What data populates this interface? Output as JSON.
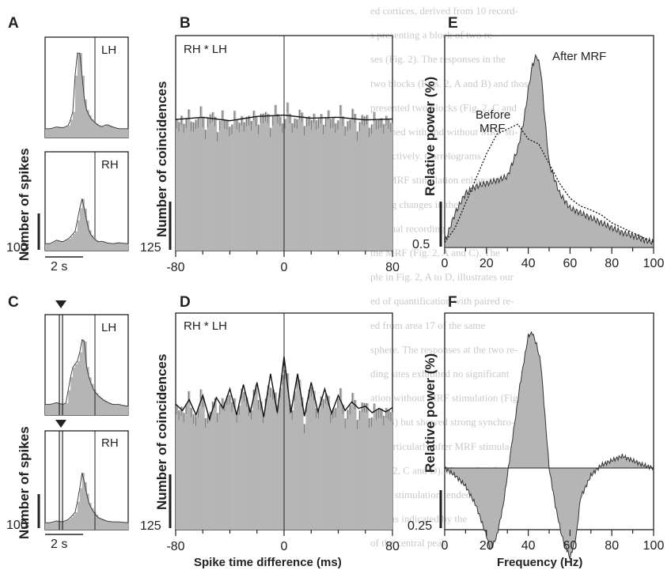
{
  "colors": {
    "fill": "#b5b5b5",
    "line": "#333333",
    "frame": "#222222",
    "background": "#ffffff"
  },
  "background_text": [
    "ed cortices, derived from 10 record-",
    "s presenting a block of two re-",
    "ses (Fig. 2). The responses in the",
    "two blocks (Figs. 2, A and B) and those",
    "presented two blocks (Fig. 2, C and",
    "obtained with and without MRF sti-",
    "respectively. Correlograms",
    "and MRF stimulation enhanced",
    "oming changes in the areas",
    "the dual recording site 17.",
    "the MRF (Fig. 2, A and C). The",
    "ple in Fig. 2, A to D, illustrates our",
    "ed of quantification with paired re-",
    "ed from area 17 of the same",
    "sphere. The responses at the two re-",
    "ding sites exhibited no significant",
    "ation without MRF stimulation (Fig.",
    "and B) but showed strong synchro-",
    "on particularly after MRF stimula-",
    "(Fig. 2, C and D). Hence, brief",
    "MRF stimulation tended to",
    "ony, as indicated by the",
    "of the central peak"
  ],
  "panels": {
    "A": {
      "letter": "A",
      "ylabel": "Number of spikes",
      "scale_value": "100",
      "time_bar": "2 s",
      "traces": [
        {
          "label": "LH"
        },
        {
          "label": "RH"
        }
      ]
    },
    "C": {
      "letter": "C",
      "ylabel": "Number of spikes",
      "scale_value": "100",
      "time_bar": "2 s",
      "has_stim_marker": true,
      "traces": [
        {
          "label": "LH"
        },
        {
          "label": "RH"
        }
      ]
    },
    "B": {
      "letter": "B",
      "ylabel": "Number of coincidences",
      "inner_label": "RH * LH",
      "scale_value": "125"
    },
    "D": {
      "letter": "D",
      "ylabel": "Number of coincidences",
      "inner_label": "RH * LH",
      "scale_value": "125",
      "xlabel": "Spike time difference (ms)"
    },
    "E": {
      "letter": "E",
      "ylabel": "Relative power (%)",
      "scale_value": "0.5",
      "annotations": {
        "after": "After MRF",
        "before_1": "Before",
        "before_2": "MRF"
      }
    },
    "F": {
      "letter": "F",
      "ylabel": "Relative power (%)",
      "scale_value": "0.25",
      "xlabel": "Frequency (Hz)"
    }
  },
  "chart_data": [
    {
      "id": "A",
      "type": "area",
      "title": "",
      "xlabel": "",
      "ylabel": "Number of spikes",
      "series": [
        {
          "name": "LH",
          "x": [
            0,
            0.3,
            0.6,
            0.9,
            1.2,
            1.4,
            1.5,
            1.6,
            1.7,
            1.8,
            1.9,
            2.0,
            2.1,
            2.2,
            2.3,
            2.4,
            2.6,
            2.8,
            3.0,
            3.3,
            3.6,
            4.0
          ],
          "values": [
            10,
            10,
            12,
            11,
            14,
            30,
            70,
            95,
            100,
            80,
            50,
            35,
            28,
            24,
            20,
            18,
            14,
            12,
            15,
            12,
            10,
            10
          ]
        },
        {
          "name": "RH",
          "x": [
            0,
            0.3,
            0.6,
            0.9,
            1.2,
            1.5,
            1.7,
            1.8,
            1.9,
            2.0,
            2.1,
            2.2,
            2.4,
            2.6,
            2.8,
            3.0,
            3.3,
            3.6,
            4.0
          ],
          "values": [
            8,
            8,
            12,
            10,
            14,
            22,
            45,
            62,
            55,
            40,
            30,
            20,
            14,
            10,
            11,
            9,
            8,
            9,
            8
          ]
        }
      ]
    },
    {
      "id": "C",
      "type": "area",
      "title": "",
      "xlabel": "",
      "ylabel": "Number of spikes",
      "series": [
        {
          "name": "LH",
          "x": [
            0,
            0.3,
            0.6,
            0.9,
            1.1,
            1.2,
            1.4,
            1.6,
            1.8,
            1.9,
            2.0,
            2.1,
            2.2,
            2.3,
            2.4,
            2.6,
            2.8,
            3.0,
            3.3,
            3.6,
            4.0
          ],
          "values": [
            12,
            12,
            14,
            12,
            14,
            35,
            55,
            60,
            78,
            100,
            62,
            48,
            40,
            34,
            28,
            22,
            18,
            15,
            12,
            12,
            10
          ]
        },
        {
          "name": "RH",
          "x": [
            0,
            0.3,
            0.6,
            0.9,
            1.2,
            1.5,
            1.7,
            1.8,
            1.9,
            2.0,
            2.1,
            2.2,
            2.4,
            2.6,
            2.8,
            3.0,
            3.3,
            3.6,
            4.0
          ],
          "values": [
            8,
            8,
            10,
            9,
            12,
            20,
            42,
            68,
            60,
            48,
            36,
            28,
            20,
            14,
            12,
            10,
            9,
            9,
            8
          ]
        }
      ]
    },
    {
      "id": "B",
      "type": "bar",
      "title": "",
      "xlabel": "",
      "ylabel": "Number of coincidences",
      "xlim": [
        -80,
        80
      ],
      "xticks": [
        -80,
        0,
        80
      ],
      "series": [
        {
          "name": "RH * LH",
          "x": [
            -80,
            -60,
            -40,
            -20,
            0,
            20,
            40,
            60,
            80
          ],
          "values": [
            305,
            310,
            302,
            312,
            315,
            308,
            310,
            304,
            306
          ]
        }
      ]
    },
    {
      "id": "D",
      "type": "bar",
      "title": "",
      "xlabel": "Spike time difference (ms)",
      "ylabel": "Number of coincidences",
      "xlim": [
        -80,
        80
      ],
      "xticks": [
        -80,
        0,
        80
      ],
      "series": [
        {
          "name": "RH * LH",
          "x": [
            -80,
            -75,
            -70,
            -65,
            -60,
            -55,
            -50,
            -45,
            -40,
            -35,
            -30,
            -25,
            -20,
            -15,
            -10,
            -5,
            0,
            5,
            10,
            15,
            20,
            25,
            30,
            35,
            40,
            45,
            50,
            55,
            60,
            65,
            70,
            75,
            80
          ],
          "values": [
            290,
            275,
            300,
            265,
            310,
            255,
            305,
            280,
            325,
            265,
            335,
            270,
            340,
            260,
            360,
            270,
            400,
            270,
            360,
            262,
            340,
            272,
            325,
            268,
            310,
            275,
            295,
            280,
            285,
            270,
            280,
            272,
            282
          ]
        }
      ]
    },
    {
      "id": "E",
      "type": "area",
      "title": "",
      "xlabel": "",
      "ylabel": "Relative power (%)",
      "xlim": [
        0,
        100
      ],
      "xticks": [
        0,
        20,
        40,
        60,
        80,
        100
      ],
      "series": [
        {
          "name": "After MRF",
          "x": [
            0,
            5,
            10,
            15,
            20,
            25,
            30,
            35,
            38,
            40,
            42,
            44,
            46,
            48,
            50,
            55,
            60,
            65,
            70,
            75,
            80,
            85,
            90,
            95,
            100
          ],
          "values": [
            0.05,
            0.35,
            0.55,
            0.62,
            0.65,
            0.68,
            0.72,
            1.0,
            1.3,
            1.6,
            1.85,
            1.95,
            1.8,
            1.3,
            0.85,
            0.55,
            0.4,
            0.35,
            0.3,
            0.25,
            0.2,
            0.15,
            0.12,
            0.08,
            0.05
          ]
        },
        {
          "name": "Before MRF",
          "x": [
            0,
            5,
            10,
            15,
            20,
            25,
            30,
            35,
            40,
            45,
            50,
            55,
            60,
            65,
            70,
            75,
            80,
            85,
            90,
            95,
            100
          ],
          "values": [
            0.05,
            0.2,
            0.45,
            0.7,
            0.95,
            1.15,
            1.2,
            1.25,
            1.1,
            1.05,
            0.85,
            0.65,
            0.5,
            0.42,
            0.38,
            0.33,
            0.25,
            0.2,
            0.15,
            0.1,
            0.05
          ]
        }
      ]
    },
    {
      "id": "F",
      "type": "area",
      "title": "",
      "xlabel": "Frequency (Hz)",
      "ylabel": "Relative power (%)",
      "xlim": [
        0,
        100
      ],
      "xticks": [
        0,
        20,
        40,
        60,
        80,
        100
      ],
      "series": [
        {
          "name": "After minus before",
          "x": [
            0,
            5,
            10,
            15,
            20,
            22,
            25,
            28,
            30,
            33,
            36,
            40,
            42,
            44,
            46,
            48,
            50,
            53,
            56,
            60,
            63,
            65,
            70,
            75,
            80,
            85,
            90,
            95,
            100
          ],
          "values": [
            0,
            -0.05,
            -0.12,
            -0.25,
            -0.45,
            -0.55,
            -0.45,
            -0.25,
            -0.05,
            0.25,
            0.55,
            0.88,
            0.9,
            0.82,
            0.7,
            0.35,
            0,
            -0.25,
            -0.45,
            -0.6,
            -0.45,
            -0.2,
            -0.05,
            0.02,
            0.05,
            0.08,
            0.05,
            0.02,
            0
          ]
        }
      ]
    }
  ]
}
